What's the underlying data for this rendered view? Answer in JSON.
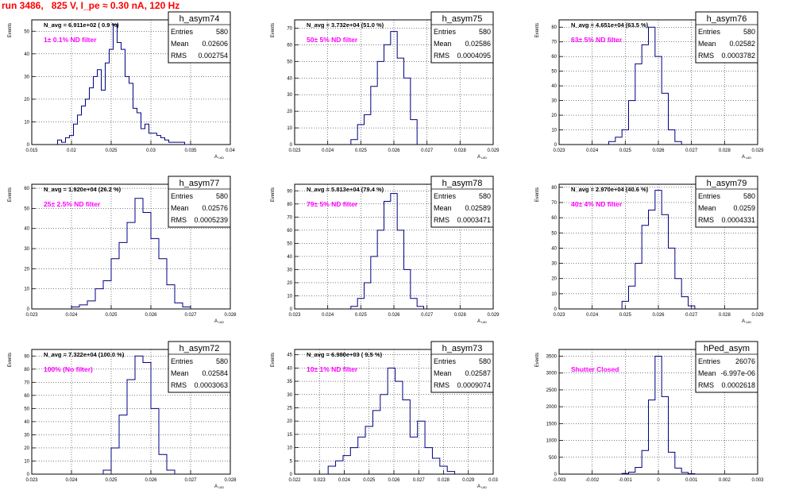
{
  "page_title": "run 3486,   825 V, I_pe ≈ 0.30 nA, 120 Hz",
  "colors": {
    "histogram": "#000080",
    "filter_label": "#ff00ff",
    "title": "#ff0000",
    "grid": "#000000"
  },
  "chart_data": [
    {
      "type": "bar",
      "name": "h_asym74",
      "navg": "N_avg = 6.911e+02 ( 0.9 %)",
      "filter": "1± 0.1% ND filter",
      "stats": {
        "entries": "580",
        "mean": "0.02606",
        "rms": "0.002754"
      },
      "xlabel": "A_UID",
      "ylabel": "Events",
      "xlim": [
        0.015,
        0.04
      ],
      "ylim": [
        0,
        55
      ],
      "xticks": [
        "0.015",
        "0.02",
        "0.025",
        "0.03",
        "0.035",
        "0.04"
      ],
      "yticks": [
        "0",
        "10",
        "20",
        "30",
        "40",
        "50"
      ],
      "grid": true,
      "bins_x": [
        0.0185,
        0.019,
        0.0195,
        0.02,
        0.0205,
        0.021,
        0.0215,
        0.022,
        0.0225,
        0.023,
        0.0235,
        0.024,
        0.0245,
        0.025,
        0.0255,
        0.026,
        0.0265,
        0.027,
        0.0275,
        0.028,
        0.0285,
        0.029,
        0.0295,
        0.03,
        0.0305,
        0.031,
        0.0315,
        0.032,
        0.0325,
        0.033,
        0.0335,
        0.034,
        0.0345
      ],
      "values": [
        2,
        1,
        3,
        4,
        9,
        13,
        17,
        20,
        25,
        30,
        33,
        24,
        36,
        42,
        53,
        45,
        42,
        30,
        27,
        16,
        14,
        7,
        9,
        5,
        5,
        4,
        3,
        2,
        1,
        1,
        1,
        1,
        0
      ]
    },
    {
      "type": "bar",
      "name": "h_asym75",
      "navg": "N_avg = 3.732e+04 (51.0 %)",
      "filter": "50± 5% ND filter",
      "stats": {
        "entries": "580",
        "mean": "0.02586",
        "rms": "0.0004095"
      },
      "xlabel": "A_UID",
      "ylabel": "Events",
      "xlim": [
        0.023,
        0.029
      ],
      "ylim": [
        0,
        75
      ],
      "xticks": [
        "0.023",
        "0.024",
        "0.025",
        "0.026",
        "0.027",
        "0.028",
        "0.029"
      ],
      "yticks": [
        "0",
        "10",
        "20",
        "30",
        "40",
        "50",
        "60",
        "70"
      ],
      "grid": true,
      "bins_x": [
        0.0248,
        0.025,
        0.0252,
        0.0254,
        0.0256,
        0.0258,
        0.026,
        0.0262,
        0.0264,
        0.0266
      ],
      "values": [
        3,
        12,
        18,
        35,
        50,
        60,
        68,
        52,
        40,
        15
      ]
    },
    {
      "type": "bar",
      "name": "h_asym76",
      "navg": "N_avg = 4.651e+04 (63.5 %)",
      "filter": "63± 5% ND filter",
      "stats": {
        "entries": "580",
        "mean": "0.02582",
        "rms": "0.0003782"
      },
      "xlabel": "A_UID",
      "ylabel": "Events",
      "xlim": [
        0.023,
        0.029
      ],
      "ylim": [
        0,
        85
      ],
      "xticks": [
        "0.023",
        "0.024",
        "0.025",
        "0.026",
        "0.027",
        "0.028",
        "0.029"
      ],
      "yticks": [
        "0",
        "10",
        "20",
        "30",
        "40",
        "50",
        "60",
        "70",
        "80"
      ],
      "grid": true,
      "bins_x": [
        0.0246,
        0.0248,
        0.025,
        0.0252,
        0.0254,
        0.0256,
        0.0258,
        0.026,
        0.0262,
        0.0264,
        0.0266
      ],
      "values": [
        2,
        5,
        10,
        30,
        55,
        68,
        80,
        60,
        35,
        10,
        2
      ]
    },
    {
      "type": "bar",
      "name": "h_asym77",
      "navg": "N_avg = 1.920e+04 (26.2 %)",
      "filter": "25± 2.5% ND filter",
      "stats": {
        "entries": "580",
        "mean": "0.02576",
        "rms": "0.0005239"
      },
      "xlabel": "A_UID",
      "ylabel": "Events",
      "xlim": [
        0.023,
        0.028
      ],
      "ylim": [
        0,
        62
      ],
      "xticks": [
        "0.023",
        "0.024",
        "0.025",
        "0.026",
        "0.027",
        "0.028"
      ],
      "yticks": [
        "0",
        "10",
        "20",
        "30",
        "40",
        "50",
        "60"
      ],
      "grid": true,
      "bins_x": [
        0.0241,
        0.0243,
        0.0245,
        0.0247,
        0.0249,
        0.0251,
        0.0253,
        0.0255,
        0.0257,
        0.0259,
        0.0261,
        0.0263,
        0.0265,
        0.0267,
        0.0269
      ],
      "values": [
        1,
        2,
        4,
        10,
        14,
        25,
        33,
        43,
        55,
        48,
        35,
        25,
        12,
        3,
        1
      ]
    },
    {
      "type": "bar",
      "name": "h_asym78",
      "navg": "N_avg = 5.813e+04 (79.4 %)",
      "filter": "79± 5% ND filter",
      "stats": {
        "entries": "580",
        "mean": "0.02589",
        "rms": "0.0003471"
      },
      "xlabel": "A_UID",
      "ylabel": "Events",
      "xlim": [
        0.023,
        0.029
      ],
      "ylim": [
        0,
        95
      ],
      "xticks": [
        "0.023",
        "0.024",
        "0.025",
        "0.026",
        "0.027",
        "0.028",
        "0.029"
      ],
      "yticks": [
        "0",
        "10",
        "20",
        "30",
        "40",
        "50",
        "60",
        "70",
        "80",
        "90"
      ],
      "grid": true,
      "bins_x": [
        0.0248,
        0.025,
        0.0252,
        0.0254,
        0.0256,
        0.0258,
        0.026,
        0.0262,
        0.0264,
        0.0266,
        0.0268
      ],
      "values": [
        2,
        8,
        20,
        40,
        60,
        82,
        88,
        60,
        30,
        8,
        2
      ]
    },
    {
      "type": "bar",
      "name": "h_asym79",
      "navg": "N_avg = 2.970e+04 (40.6 %)",
      "filter": "40± 4% ND filter",
      "stats": {
        "entries": "580",
        "mean": "0.0259",
        "rms": "0.0004331"
      },
      "xlabel": "A_UID",
      "ylabel": "Events",
      "xlim": [
        0.023,
        0.029
      ],
      "ylim": [
        0,
        82
      ],
      "xticks": [
        "0.023",
        "0.024",
        "0.025",
        "0.026",
        "0.027",
        "0.028",
        "0.029"
      ],
      "yticks": [
        "0",
        "10",
        "20",
        "30",
        "40",
        "50",
        "60",
        "70",
        "80"
      ],
      "grid": true,
      "bins_x": [
        0.025,
        0.0252,
        0.0254,
        0.0256,
        0.0258,
        0.026,
        0.0262,
        0.0264,
        0.0266,
        0.0268,
        0.027
      ],
      "values": [
        5,
        15,
        30,
        55,
        65,
        78,
        62,
        40,
        20,
        8,
        2
      ]
    },
    {
      "type": "bar",
      "name": "h_asym72",
      "navg": "N_avg = 7.322e+04 (100.0 %)",
      "filter": "100% (No filter)",
      "stats": {
        "entries": "580",
        "mean": "0.02584",
        "rms": "0.0003063"
      },
      "xlabel": "A_UID",
      "ylabel": "Events",
      "xlim": [
        0.023,
        0.028
      ],
      "ylim": [
        0,
        95
      ],
      "xticks": [
        "0.023",
        "0.024",
        "0.025",
        "0.026",
        "0.027",
        "0.028"
      ],
      "yticks": [
        "0",
        "10",
        "20",
        "30",
        "40",
        "50",
        "60",
        "70",
        "80",
        "90"
      ],
      "grid": true,
      "bins_x": [
        0.0249,
        0.0251,
        0.0253,
        0.0255,
        0.0257,
        0.0259,
        0.0261,
        0.0263,
        0.0265
      ],
      "values": [
        3,
        20,
        45,
        72,
        90,
        85,
        50,
        15,
        3
      ]
    },
    {
      "type": "bar",
      "name": "h_asym73",
      "navg": "N_avg = 6.980e+03 ( 9.5 %)",
      "filter": "10± 1% ND filter",
      "stats": {
        "entries": "580",
        "mean": "0.02587",
        "rms": "0.0009074"
      },
      "xlabel": "A_UID",
      "ylabel": "Events",
      "xlim": [
        0.022,
        0.03
      ],
      "ylim": [
        0,
        47
      ],
      "xticks": [
        "0.022",
        "0.023",
        "0.024",
        "0.025",
        "0.026",
        "0.027",
        "0.028",
        "0.029",
        "0.03"
      ],
      "yticks": [
        "0",
        "5",
        "10",
        "15",
        "20",
        "25",
        "30",
        "35",
        "40",
        "45"
      ],
      "grid": true,
      "bins_x": [
        0.0235,
        0.0238,
        0.0241,
        0.0244,
        0.0247,
        0.025,
        0.0253,
        0.0256,
        0.0259,
        0.0262,
        0.0265,
        0.0268,
        0.0271,
        0.0274,
        0.0277,
        0.028,
        0.0283
      ],
      "values": [
        3,
        5,
        7,
        10,
        14,
        18,
        24,
        30,
        40,
        35,
        28,
        14,
        20,
        10,
        6,
        3,
        1
      ]
    },
    {
      "type": "bar",
      "name": "hPed_asym",
      "navg": "",
      "filter": "Shutter Closed",
      "stats": {
        "entries": "26076",
        "mean": "-6.997e-06",
        "rms": "0.0002618"
      },
      "xlabel": "",
      "ylabel": "Events",
      "xlim": [
        -0.003,
        0.003
      ],
      "ylim": [
        0,
        3700
      ],
      "xticks": [
        "-0.003",
        "-0.002",
        "-0.001",
        "0",
        "0.001",
        "0.002",
        "0.003"
      ],
      "yticks": [
        "0",
        "500",
        "1000",
        "1500",
        "2000",
        "2500",
        "3000",
        "3500"
      ],
      "grid": true,
      "bins_x": [
        -0.001,
        -0.0008,
        -0.0006,
        -0.0004,
        -0.0002,
        0.0,
        0.0002,
        0.0004,
        0.0006,
        0.0008,
        0.001
      ],
      "values": [
        20,
        60,
        200,
        700,
        2200,
        3500,
        2300,
        650,
        180,
        50,
        15
      ]
    }
  ]
}
